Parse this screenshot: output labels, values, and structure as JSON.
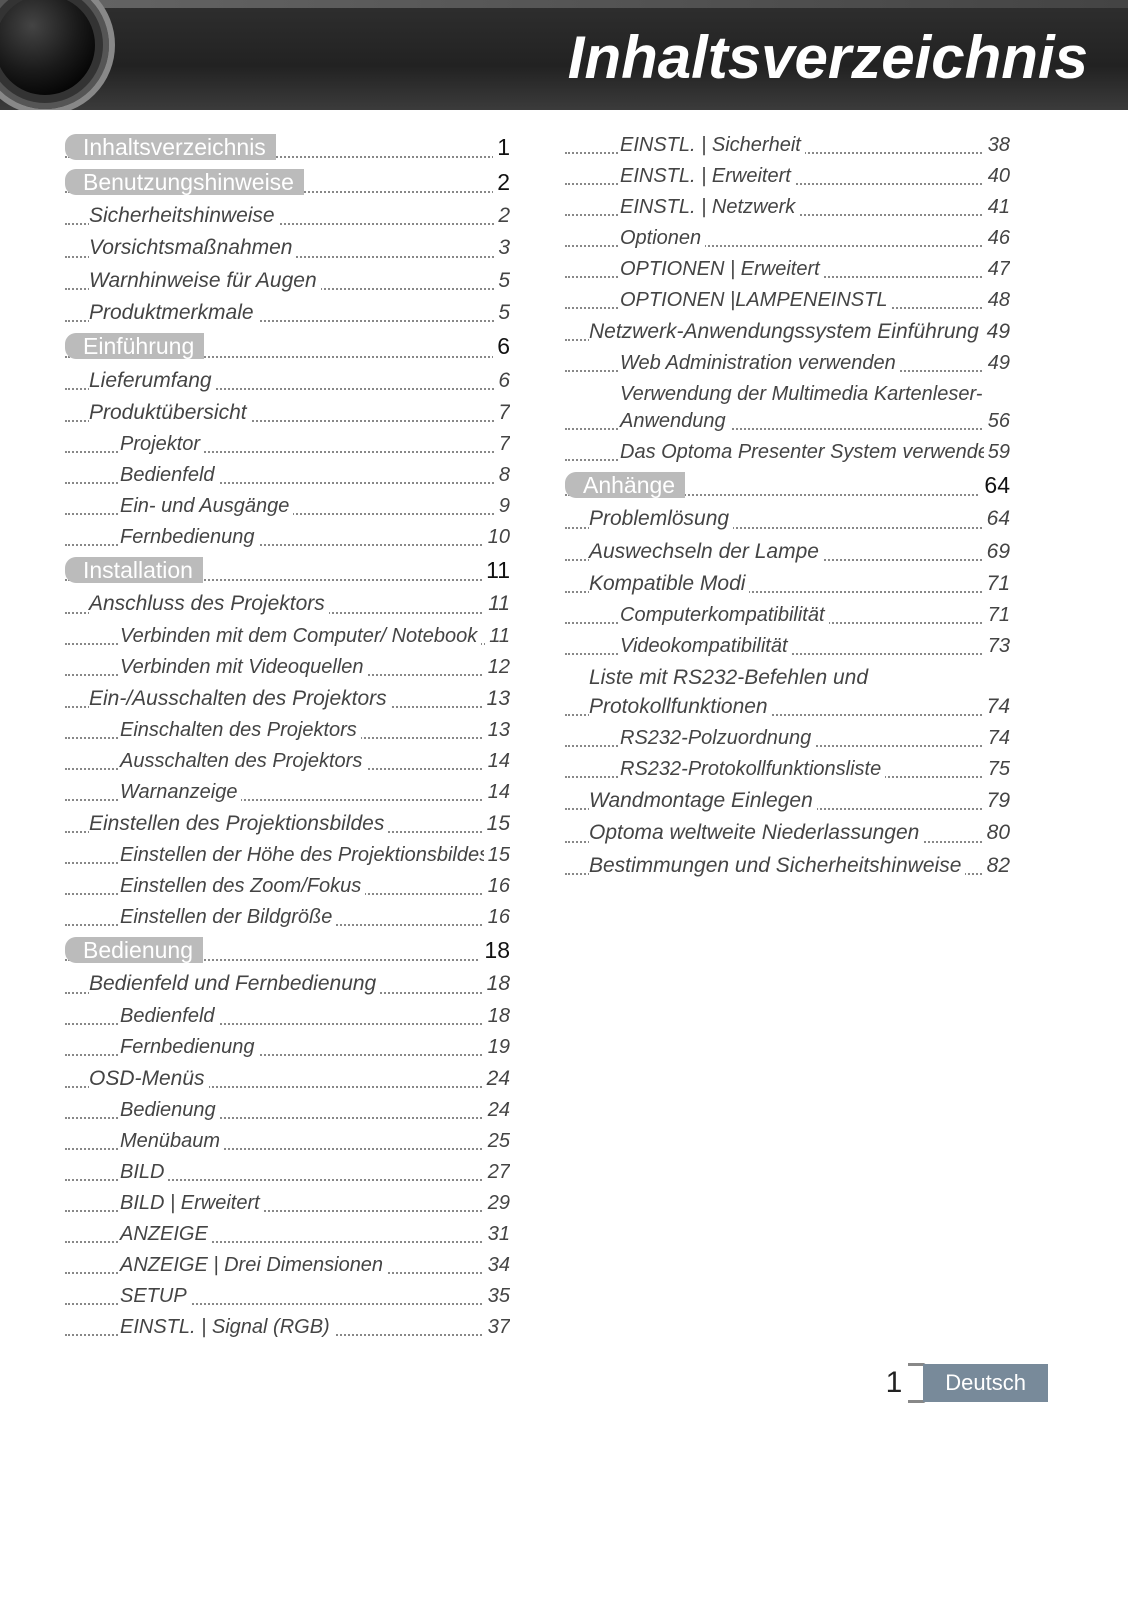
{
  "banner_title": "Inhaltsverzeichnis",
  "page_number": "1",
  "language_label": "Deutsch",
  "colors": {
    "banner_bg_top": "#2f2f2f",
    "banner_bg_bottom": "#3b3b3b",
    "level0_pill_bg": "#bbbbbb",
    "level0_pill_text": "#ffffff",
    "text_level1": "#444444",
    "dots": "#888888",
    "footer_badge_bg": "#788a9a",
    "footer_badge_text": "#ffffff"
  },
  "typography": {
    "banner_title_fontsize": 60,
    "level0_fontsize": 23,
    "level1_fontsize": 21,
    "level2_fontsize": 20,
    "font_style_levels": "italic",
    "font_family": "Arial"
  },
  "toc_left": [
    {
      "level": 0,
      "label": "Inhaltsverzeichnis",
      "page": "1"
    },
    {
      "level": 0,
      "label": "Benutzungshinweise",
      "page": "2"
    },
    {
      "level": 1,
      "label": "Sicherheitshinweise",
      "page": "2"
    },
    {
      "level": 1,
      "label": "Vorsichtsmaßnahmen",
      "page": "3"
    },
    {
      "level": 1,
      "label": "Warnhinweise für Augen",
      "page": "5"
    },
    {
      "level": 1,
      "label": "Produktmerkmale",
      "page": "5"
    },
    {
      "level": 0,
      "label": "Einführung",
      "page": "6"
    },
    {
      "level": 1,
      "label": "Lieferumfang",
      "page": "6"
    },
    {
      "level": 1,
      "label": "Produktübersicht",
      "page": "7"
    },
    {
      "level": 2,
      "label": "Projektor",
      "page": "7"
    },
    {
      "level": 2,
      "label": "Bedienfeld",
      "page": "8"
    },
    {
      "level": 2,
      "label": "Ein- und Ausgänge",
      "page": "9"
    },
    {
      "level": 2,
      "label": "Fernbedienung",
      "page": "10"
    },
    {
      "level": 0,
      "label": "Installation",
      "page": "11"
    },
    {
      "level": 1,
      "label": "Anschluss des Projektors",
      "page": "11"
    },
    {
      "level": 2,
      "label": "Verbinden mit dem Computer/ Notebook",
      "page": "11",
      "multi": true
    },
    {
      "level": 2,
      "label": "Verbinden mit Videoquellen",
      "page": "12"
    },
    {
      "level": 1,
      "label": "Ein-/Ausschalten des Projektors",
      "page": "13"
    },
    {
      "level": 2,
      "label": "Einschalten des Projektors",
      "page": "13"
    },
    {
      "level": 2,
      "label": "Ausschalten des Projektors",
      "page": "14"
    },
    {
      "level": 2,
      "label": "Warnanzeige",
      "page": "14"
    },
    {
      "level": 1,
      "label": "Einstellen des Projektionsbildes",
      "page": "15"
    },
    {
      "level": 2,
      "label": "Einstellen der Höhe des Projektionsbildes",
      "page": "15",
      "multi": true
    },
    {
      "level": 2,
      "label": "Einstellen des Zoom/Fokus",
      "page": "16"
    },
    {
      "level": 2,
      "label": "Einstellen der Bildgröße",
      "page": "16"
    },
    {
      "level": 0,
      "label": "Bedienung",
      "page": "18"
    },
    {
      "level": 1,
      "label": "Bedienfeld und Fernbedienung",
      "page": "18"
    },
    {
      "level": 2,
      "label": "Bedienfeld",
      "page": "18"
    },
    {
      "level": 2,
      "label": "Fernbedienung",
      "page": "19"
    },
    {
      "level": 1,
      "label": "OSD-Menüs",
      "page": "24"
    },
    {
      "level": 2,
      "label": "Bedienung",
      "page": "24"
    },
    {
      "level": 2,
      "label": "Menübaum",
      "page": "25"
    },
    {
      "level": 2,
      "label": "BILD",
      "page": "27"
    },
    {
      "level": 2,
      "label": "BILD | Erweitert",
      "page": "29"
    },
    {
      "level": 2,
      "label": "ANZEIGE",
      "page": "31"
    },
    {
      "level": 2,
      "label": "ANZEIGE | Drei Dimensionen",
      "page": "34"
    },
    {
      "level": 2,
      "label": "SETUP",
      "page": "35"
    },
    {
      "level": 2,
      "label": "EINSTL. | Signal (RGB)",
      "page": "37"
    }
  ],
  "toc_right": [
    {
      "level": 2,
      "label": "EINSTL. | Sicherheit",
      "page": "38"
    },
    {
      "level": 2,
      "label": "EINSTL. | Erweitert",
      "page": "40"
    },
    {
      "level": 2,
      "label": "EINSTL. | Netzwerk",
      "page": "41"
    },
    {
      "level": 2,
      "label": "Optionen",
      "page": "46"
    },
    {
      "level": 2,
      "label": "OPTIONEN | Erweitert",
      "page": "47"
    },
    {
      "level": 2,
      "label": "OPTIONEN |LAMPENEINSTL",
      "page": "48"
    },
    {
      "level": 1,
      "label": "Netzwerk-Anwendungssystem Einführung",
      "page": "49",
      "multi": true
    },
    {
      "level": 2,
      "label": "Web Administration verwenden",
      "page": "49"
    },
    {
      "level": 2,
      "label": "Verwendung der Multimedia Kartenleser-Anwendung",
      "page": "56",
      "multi": true
    },
    {
      "level": 2,
      "label": "Das Optoma Presenter System verwenden",
      "page": "59",
      "multi": true
    },
    {
      "level": 0,
      "label": "Anhänge",
      "page": "64"
    },
    {
      "level": 1,
      "label": "Problemlösung",
      "page": "64"
    },
    {
      "level": 1,
      "label": "Auswechseln der Lampe",
      "page": "69"
    },
    {
      "level": 1,
      "label": "Kompatible Modi",
      "page": "71"
    },
    {
      "level": 2,
      "label": "Computerkompatibilität",
      "page": "71"
    },
    {
      "level": 2,
      "label": "Videokompatibilität",
      "page": "73"
    },
    {
      "level": 1,
      "label": "Liste mit RS232-Befehlen und Protokollfunktionen",
      "page": "74",
      "multi": true
    },
    {
      "level": 2,
      "label": "RS232-Polzuordnung",
      "page": "74"
    },
    {
      "level": 2,
      "label": "RS232-Protokollfunktionsliste",
      "page": "75"
    },
    {
      "level": 1,
      "label": "Wandmontage Einlegen",
      "page": "79"
    },
    {
      "level": 1,
      "label": "Optoma weltweite Niederlassungen",
      "page": "80"
    },
    {
      "level": 1,
      "label": "Bestimmungen und Sicherheitshinweise",
      "page": "82",
      "multi": true
    }
  ]
}
